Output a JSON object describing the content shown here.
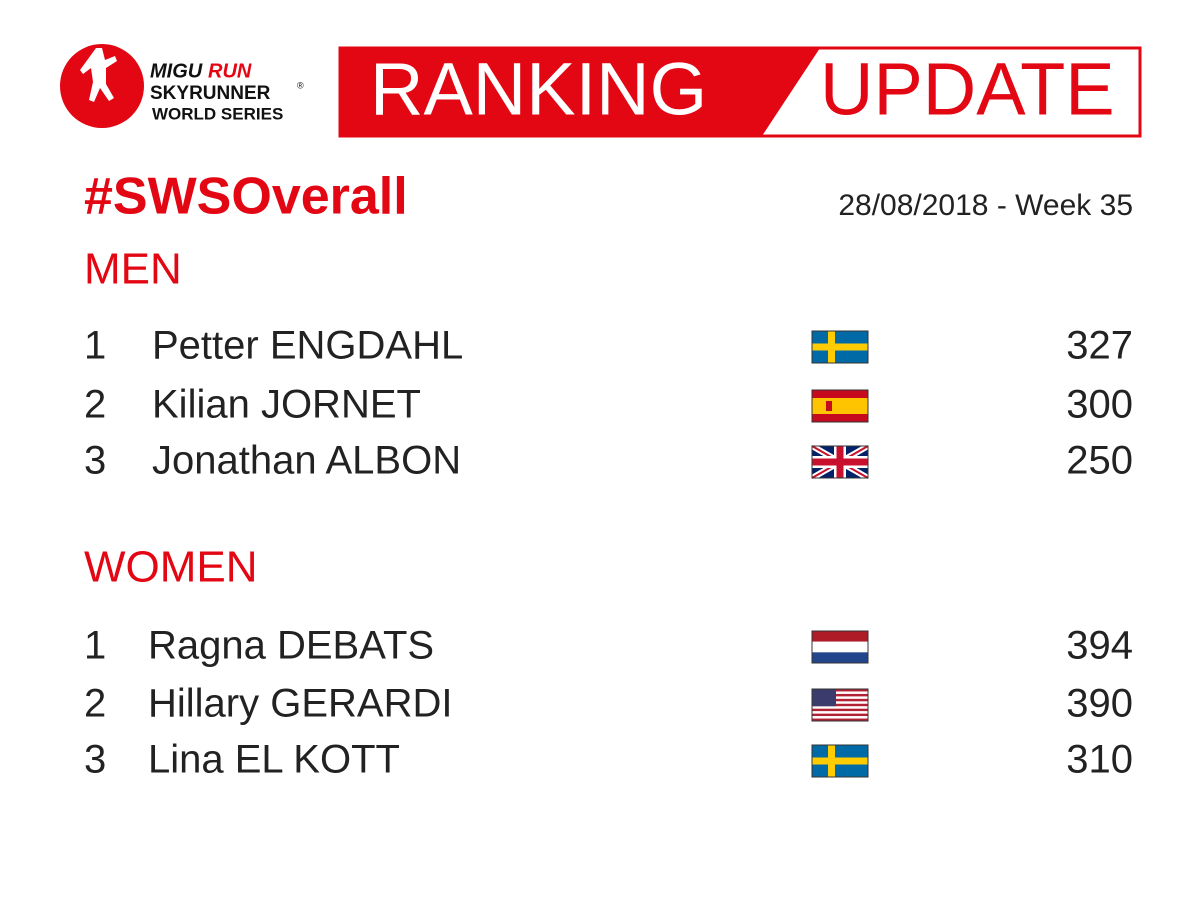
{
  "logo": {
    "brand_a": "MIGU",
    "brand_b": "RUN",
    "line2": "SKYRUNNER",
    "reg": "®",
    "line3": "WORLD SERIES"
  },
  "banner": {
    "left": "RANKING",
    "right": "UPDATE"
  },
  "hashtag": "#SWSOverall",
  "date": "28/08/2018 - Week 35",
  "sections": [
    {
      "title": "MEN",
      "rows": [
        {
          "rank": 1,
          "name": "Petter ENGDAHL",
          "flag": "SE",
          "points": 327
        },
        {
          "rank": 2,
          "name": "Kilian JORNET",
          "flag": "ES",
          "points": 300
        },
        {
          "rank": 3,
          "name": "Jonathan ALBON",
          "flag": "GB",
          "points": 250
        }
      ]
    },
    {
      "title": "WOMEN",
      "rows": [
        {
          "rank": 1,
          "name": "Ragna DEBATS",
          "flag": "NL",
          "points": 394
        },
        {
          "rank": 2,
          "name": "Hillary GERARDI",
          "flag": "US",
          "points": 390
        },
        {
          "rank": 3,
          "name": "Lina EL KOTT",
          "flag": "SE",
          "points": 310
        }
      ]
    }
  ]
}
